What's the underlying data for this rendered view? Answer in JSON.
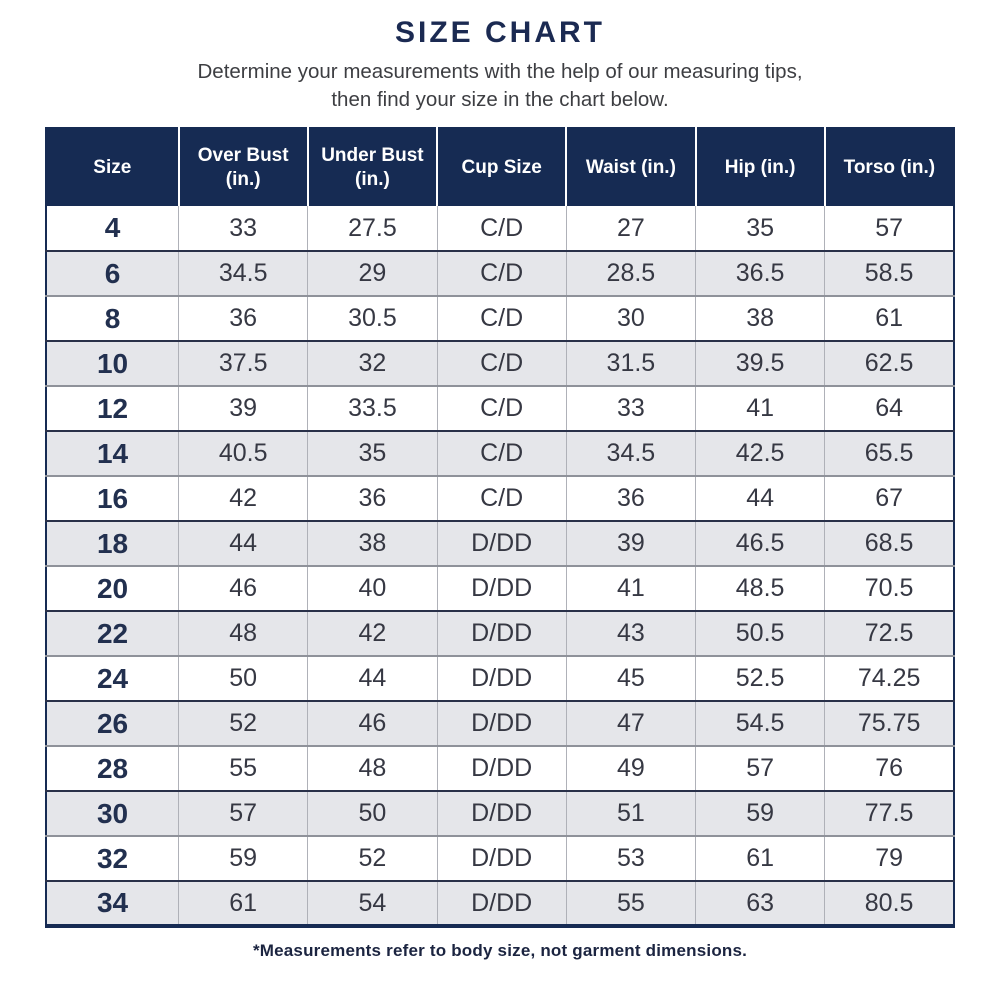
{
  "page": {
    "title": "SIZE CHART",
    "subtitle_line1": "Determine your measurements with the help of our measuring tips,",
    "subtitle_line2": "then find your size in the chart below.",
    "footnote": "*Measurements refer to body size, not garment dimensions."
  },
  "colors": {
    "header_navy": "#162B53",
    "title_navy": "#1B2A52",
    "alt_row_gray": "#E5E6EA",
    "body_text": "#363843",
    "column_divider": "#AFB1B8",
    "row_border_dark": "#2A3149",
    "row_border_gray": "#8F929A"
  },
  "chart_data": {
    "type": "table",
    "title": "SIZE CHART",
    "columns": [
      "Size",
      "Over Bust (in.)",
      "Under Bust (in.)",
      "Cup Size",
      "Waist (in.)",
      "Hip (in.)",
      "Torso (in.)"
    ],
    "rows": [
      [
        "4",
        "33",
        "27.5",
        "C/D",
        "27",
        "35",
        "57"
      ],
      [
        "6",
        "34.5",
        "29",
        "C/D",
        "28.5",
        "36.5",
        "58.5"
      ],
      [
        "8",
        "36",
        "30.5",
        "C/D",
        "30",
        "38",
        "61"
      ],
      [
        "10",
        "37.5",
        "32",
        "C/D",
        "31.5",
        "39.5",
        "62.5"
      ],
      [
        "12",
        "39",
        "33.5",
        "C/D",
        "33",
        "41",
        "64"
      ],
      [
        "14",
        "40.5",
        "35",
        "C/D",
        "34.5",
        "42.5",
        "65.5"
      ],
      [
        "16",
        "42",
        "36",
        "C/D",
        "36",
        "44",
        "67"
      ],
      [
        "18",
        "44",
        "38",
        "D/DD",
        "39",
        "46.5",
        "68.5"
      ],
      [
        "20",
        "46",
        "40",
        "D/DD",
        "41",
        "48.5",
        "70.5"
      ],
      [
        "22",
        "48",
        "42",
        "D/DD",
        "43",
        "50.5",
        "72.5"
      ],
      [
        "24",
        "50",
        "44",
        "D/DD",
        "45",
        "52.5",
        "74.25"
      ],
      [
        "26",
        "52",
        "46",
        "D/DD",
        "47",
        "54.5",
        "75.75"
      ],
      [
        "28",
        "55",
        "48",
        "D/DD",
        "49",
        "57",
        "76"
      ],
      [
        "30",
        "57",
        "50",
        "D/DD",
        "51",
        "59",
        "77.5"
      ],
      [
        "32",
        "59",
        "52",
        "D/DD",
        "53",
        "61",
        "79"
      ],
      [
        "34",
        "61",
        "54",
        "D/DD",
        "55",
        "63",
        "80.5"
      ]
    ],
    "layout": {
      "alternating_rows": true,
      "first_row_background": "white",
      "header_background": "navy",
      "legend": "none"
    }
  }
}
